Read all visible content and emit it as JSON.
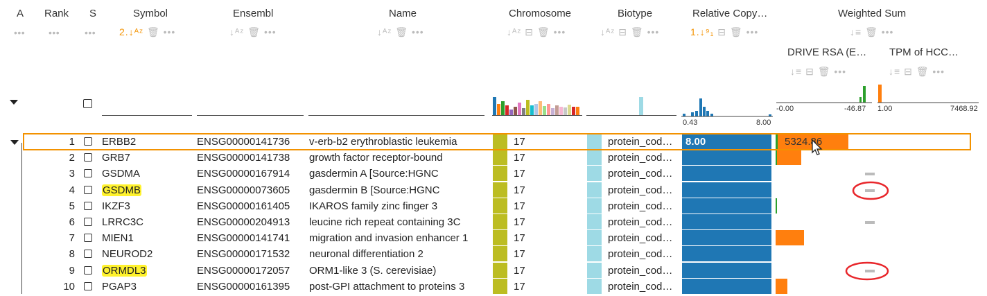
{
  "columns": {
    "a": "A",
    "rank": "Rank",
    "s": "S",
    "symbol": "Symbol",
    "ensembl": "Ensembl",
    "name": "Name",
    "chromosome": "Chromosome",
    "biotype": "Biotype",
    "rel_copy": "Relative Copy…",
    "weighted_sum": "Weighted Sum",
    "drive_rsa": "DRIVE RSA (E…",
    "tpm": "TPM of HCC…"
  },
  "sort_badges": {
    "symbol": "2.",
    "rel_copy": "1."
  },
  "summaries": {
    "rel_copy_min": "0.43",
    "rel_copy_max": "8.00",
    "drive_min": "-0.00",
    "drive_max": "-46.87",
    "tpm_min": "1.00",
    "tpm_max": "7468.92"
  },
  "rows": [
    {
      "rank": "1",
      "symbol": "ERBB2",
      "ensembl": "ENSG00000141736",
      "name": "v-erb-b2 erythroblastic leukemia",
      "chrom": "17",
      "biotype": "protein_cod…",
      "rel": 8.0,
      "rel_label": "8.00",
      "ws_label": "5324.86",
      "drive": 0.01,
      "tpm": 0.35,
      "missing": false,
      "selected": true,
      "highlight": false
    },
    {
      "rank": "2",
      "symbol": "GRB7",
      "ensembl": "ENSG00000141738",
      "name": "growth factor receptor-bound",
      "chrom": "17",
      "biotype": "protein_cod…",
      "rel": 8.0,
      "rel_label": "",
      "ws_label": "",
      "drive": 0.005,
      "tpm": 0.12,
      "missing": false,
      "selected": false,
      "highlight": false
    },
    {
      "rank": "3",
      "symbol": "GSDMA",
      "ensembl": "ENSG00000167914",
      "name": "gasdermin A [Source:HGNC",
      "chrom": "17",
      "biotype": "protein_cod…",
      "rel": 8.0,
      "rel_label": "",
      "ws_label": "",
      "drive": 0,
      "tpm": 0,
      "missing": true,
      "selected": false,
      "highlight": false
    },
    {
      "rank": "4",
      "symbol": "GSDMB",
      "ensembl": "ENSG00000073605",
      "name": "gasdermin B [Source:HGNC",
      "chrom": "17",
      "biotype": "protein_cod…",
      "rel": 8.0,
      "rel_label": "",
      "ws_label": "",
      "drive": 0,
      "tpm": 0,
      "missing": true,
      "selected": false,
      "highlight": true,
      "circled": true
    },
    {
      "rank": "5",
      "symbol": "IKZF3",
      "ensembl": "ENSG00000161405",
      "name": "IKAROS family zinc finger 3",
      "chrom": "17",
      "biotype": "protein_cod…",
      "rel": 8.0,
      "rel_label": "",
      "ws_label": "",
      "drive": 0.005,
      "tpm": 0,
      "missing": false,
      "selected": false,
      "highlight": false
    },
    {
      "rank": "6",
      "symbol": "LRRC3C",
      "ensembl": "ENSG00000204913",
      "name": "leucine rich repeat containing 3C",
      "chrom": "17",
      "biotype": "protein_cod…",
      "rel": 8.0,
      "rel_label": "",
      "ws_label": "",
      "drive": 0,
      "tpm": 0,
      "missing": true,
      "selected": false,
      "highlight": false
    },
    {
      "rank": "7",
      "symbol": "MIEN1",
      "ensembl": "ENSG00000141741",
      "name": "migration and invasion enhancer 1",
      "chrom": "17",
      "biotype": "protein_cod…",
      "rel": 8.0,
      "rel_label": "",
      "ws_label": "",
      "drive": 0,
      "tpm": 0.14,
      "missing": false,
      "selected": false,
      "highlight": false
    },
    {
      "rank": "8",
      "symbol": "NEUROD2",
      "ensembl": "ENSG00000171532",
      "name": "neuronal differentiation 2",
      "chrom": "17",
      "biotype": "protein_cod…",
      "rel": 8.0,
      "rel_label": "",
      "ws_label": "",
      "drive": 0,
      "tpm": 0,
      "missing": false,
      "selected": false,
      "highlight": false
    },
    {
      "rank": "9",
      "symbol": "ORMDL3",
      "ensembl": "ENSG00000172057",
      "name": "ORM1-like 3 (S. cerevisiae)",
      "chrom": "17",
      "biotype": "protein_cod…",
      "rel": 8.0,
      "rel_label": "",
      "ws_label": "",
      "drive": 0,
      "tpm": 0,
      "missing": true,
      "selected": false,
      "highlight": true,
      "circled": true
    },
    {
      "rank": "10",
      "symbol": "PGAP3",
      "ensembl": "ENSG00000161395",
      "name": "post-GPI attachment to proteins 3",
      "chrom": "17",
      "biotype": "protein_cod…",
      "rel": 8.0,
      "rel_label": "",
      "ws_label": "",
      "drive": 0,
      "tpm": 0.06,
      "missing": false,
      "selected": false,
      "highlight": false
    }
  ],
  "colors": {
    "accent": "#f39200",
    "chrom": "#bcbd22",
    "biotype": "#9edae5",
    "rel": "#1f77b4",
    "drive": "#2ca02c",
    "tpm": "#ff7f0e",
    "missing": "#bbbbbb",
    "highlight": "#fff22d",
    "annotation": "#e8262b"
  },
  "icons": [
    "sort-icon",
    "trash-icon",
    "more-icon",
    "collapse-icon",
    "split-icon",
    "checkbox-icon"
  ]
}
